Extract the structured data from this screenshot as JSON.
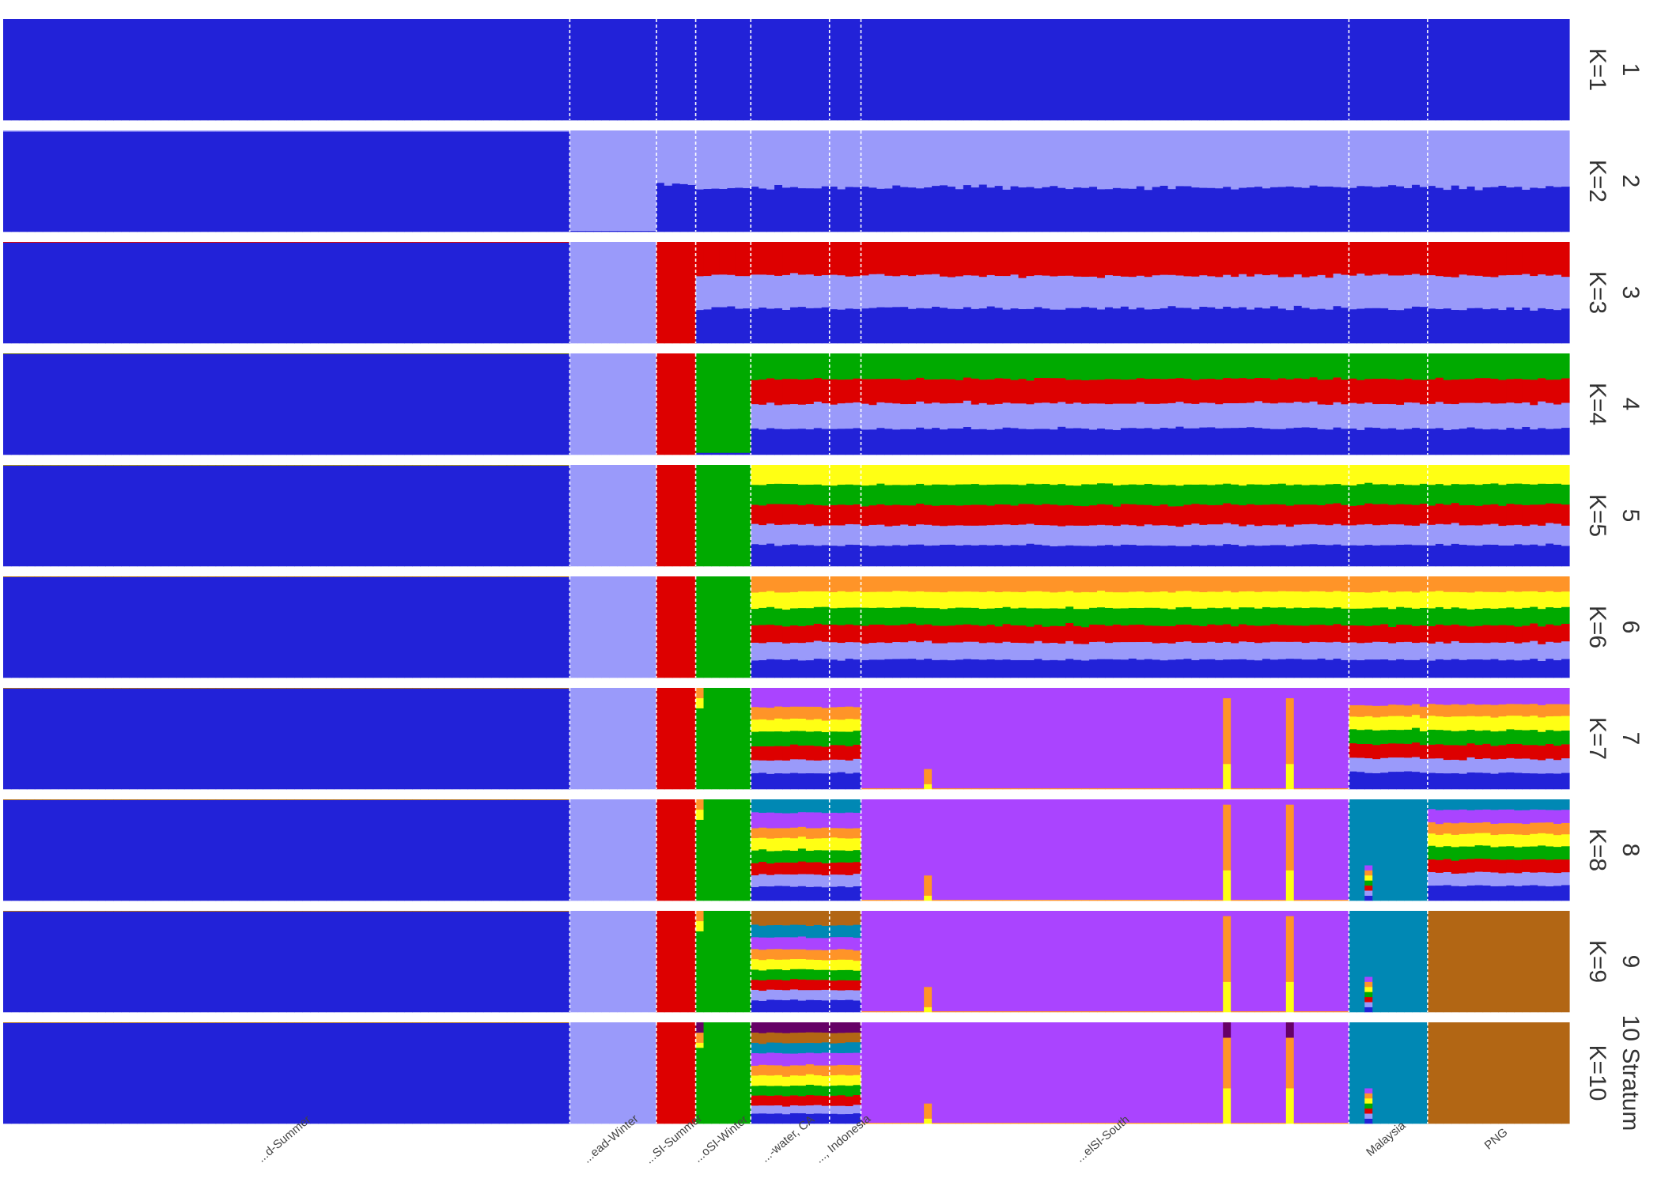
{
  "chart_data": {
    "type": "bar",
    "subtype": "stacked-admixture-facets",
    "title": "",
    "ylim": [
      0,
      1
    ],
    "grid": false,
    "colors": [
      "#2222d8",
      "#9a9afa",
      "#dd0000",
      "#00aa00",
      "#ffff14",
      "#ff9428",
      "#aa44ff",
      "#0088b4",
      "#b26614",
      "#660066"
    ],
    "groups": [
      {
        "label": "...d-Summer",
        "n": 72
      },
      {
        "label": "...ead-Winter",
        "n": 11
      },
      {
        "label": "...SI-Summer",
        "n": 5
      },
      {
        "label": "...oSI-Winter",
        "n": 7
      },
      {
        "label": "...-water, CA",
        "n": 10
      },
      {
        "label": "..., Indonesia",
        "n": 4
      },
      {
        "label": "...elSI-South",
        "n": 62
      },
      {
        "label": "Malaysia",
        "n": 10
      },
      {
        "label": "PNG",
        "n": 18
      }
    ],
    "panels": [
      {
        "k": "1",
        "label": "K=1",
        "profiles": [
          [
            1
          ],
          [
            1
          ],
          [
            1
          ],
          [
            1
          ],
          [
            1
          ],
          [
            1
          ],
          [
            1
          ],
          [
            1
          ],
          [
            1
          ]
        ],
        "outliers": []
      },
      {
        "k": "2",
        "label": "K=2",
        "profiles": [
          [
            0.99,
            0.01
          ],
          [
            0.01,
            0.99
          ],
          [
            0.48,
            0.52
          ],
          [
            0.43,
            0.57
          ],
          [
            0.44,
            0.56
          ],
          [
            0.44,
            0.56
          ],
          [
            0.44,
            0.56
          ],
          [
            0.45,
            0.55
          ],
          [
            0.44,
            0.56
          ]
        ],
        "outliers": []
      },
      {
        "k": "3",
        "label": "K=3",
        "profiles": [
          [
            0.995,
            0.0,
            0.005
          ],
          [
            0.0,
            1.0,
            0.0
          ],
          [
            0.0,
            0.0,
            1.0
          ],
          [
            0.35,
            0.32,
            0.33
          ],
          [
            0.35,
            0.33,
            0.32
          ],
          [
            0.34,
            0.33,
            0.33
          ],
          [
            0.35,
            0.32,
            0.33
          ],
          [
            0.35,
            0.33,
            0.32
          ],
          [
            0.34,
            0.33,
            0.33
          ]
        ],
        "outliers": []
      },
      {
        "k": "4",
        "label": "K=4",
        "profiles": [
          [
            0.995,
            0.0,
            0.003,
            0.002
          ],
          [
            0.0,
            1.0,
            0.0,
            0.0
          ],
          [
            0.0,
            0.0,
            1.0,
            0.0
          ],
          [
            0.02,
            0.0,
            0.0,
            0.98
          ],
          [
            0.26,
            0.25,
            0.24,
            0.25
          ],
          [
            0.26,
            0.25,
            0.24,
            0.25
          ],
          [
            0.26,
            0.25,
            0.24,
            0.25
          ],
          [
            0.26,
            0.25,
            0.24,
            0.25
          ],
          [
            0.26,
            0.25,
            0.24,
            0.25
          ]
        ],
        "outliers": []
      },
      {
        "k": "5",
        "label": "K=5",
        "profiles": [
          [
            0.995,
            0.0,
            0.002,
            0.002,
            0.001
          ],
          [
            0.0,
            1.0,
            0.0,
            0.0,
            0.0
          ],
          [
            0.0,
            0.0,
            1.0,
            0.0,
            0.0
          ],
          [
            0.0,
            0.0,
            0.0,
            1.0,
            0.0
          ],
          [
            0.21,
            0.2,
            0.2,
            0.2,
            0.19
          ],
          [
            0.21,
            0.2,
            0.2,
            0.2,
            0.19
          ],
          [
            0.21,
            0.2,
            0.2,
            0.2,
            0.19
          ],
          [
            0.21,
            0.2,
            0.2,
            0.2,
            0.19
          ],
          [
            0.21,
            0.2,
            0.2,
            0.2,
            0.19
          ]
        ],
        "outliers": []
      },
      {
        "k": "6",
        "label": "K=6",
        "profiles": [
          [
            0.995,
            0.0,
            0.002,
            0.002,
            0.0,
            0.001
          ],
          [
            0.0,
            1.0,
            0.0,
            0.0,
            0.0,
            0.0
          ],
          [
            0.0,
            0.0,
            1.0,
            0.0,
            0.0,
            0.0
          ],
          [
            0.0,
            0.0,
            0.0,
            1.0,
            0.0,
            0.0
          ],
          [
            0.18,
            0.17,
            0.17,
            0.17,
            0.16,
            0.15
          ],
          [
            0.18,
            0.17,
            0.17,
            0.17,
            0.16,
            0.15
          ],
          [
            0.18,
            0.17,
            0.17,
            0.17,
            0.16,
            0.15
          ],
          [
            0.18,
            0.17,
            0.17,
            0.17,
            0.16,
            0.15
          ],
          [
            0.18,
            0.17,
            0.17,
            0.17,
            0.16,
            0.15
          ]
        ],
        "outliers": []
      },
      {
        "k": "7",
        "label": "K=7",
        "profiles": [
          [
            0.995,
            0.0,
            0.002,
            0.002,
            0.0,
            0.001,
            0.0
          ],
          [
            0.0,
            1.0,
            0.0,
            0.0,
            0.0,
            0.0,
            0.0
          ],
          [
            0.0,
            0.0,
            1.0,
            0.0,
            0.0,
            0.0,
            0.0
          ],
          [
            0.0,
            0.0,
            0.0,
            1.0,
            0.0,
            0.0,
            0.0
          ],
          [
            0.16,
            0.13,
            0.14,
            0.14,
            0.12,
            0.12,
            0.19
          ],
          [
            0.16,
            0.13,
            0.14,
            0.14,
            0.12,
            0.12,
            0.19
          ],
          [
            0.0,
            0.0,
            0.0,
            0.0,
            0.0,
            0.01,
            0.99
          ],
          [
            0.17,
            0.14,
            0.14,
            0.14,
            0.13,
            0.11,
            0.17
          ],
          [
            0.16,
            0.14,
            0.14,
            0.14,
            0.14,
            0.12,
            0.16
          ]
        ],
        "outliers": [
          {
            "group": 3,
            "index": 0,
            "q": [
              0.0,
              0.0,
              0.0,
              0.8,
              0.1,
              0.1,
              0.0
            ]
          },
          {
            "group": 6,
            "index": 8,
            "q": [
              0.0,
              0.0,
              0.0,
              0.0,
              0.05,
              0.15,
              0.8
            ]
          },
          {
            "group": 6,
            "index": 46,
            "q": [
              0.0,
              0.0,
              0.0,
              0.0,
              0.25,
              0.65,
              0.1
            ]
          },
          {
            "group": 6,
            "index": 54,
            "q": [
              0.0,
              0.0,
              0.0,
              0.0,
              0.25,
              0.65,
              0.1
            ]
          }
        ]
      },
      {
        "k": "8",
        "label": "K=8",
        "profiles": [
          [
            0.995,
            0.0,
            0.002,
            0.002,
            0.0,
            0.001,
            0.0,
            0.0
          ],
          [
            0.0,
            1.0,
            0.0,
            0.0,
            0.0,
            0.0,
            0.0,
            0.0
          ],
          [
            0.0,
            0.0,
            1.0,
            0.0,
            0.0,
            0.0,
            0.0,
            0.0
          ],
          [
            0.0,
            0.0,
            0.0,
            1.0,
            0.0,
            0.0,
            0.0,
            0.0
          ],
          [
            0.14,
            0.12,
            0.12,
            0.12,
            0.12,
            0.1,
            0.15,
            0.13
          ],
          [
            0.14,
            0.12,
            0.12,
            0.12,
            0.12,
            0.1,
            0.15,
            0.13
          ],
          [
            0.0,
            0.0,
            0.0,
            0.0,
            0.0,
            0.01,
            0.99,
            0.0
          ],
          [
            0.0,
            0.0,
            0.0,
            0.0,
            0.0,
            0.0,
            0.0,
            1.0
          ],
          [
            0.15,
            0.13,
            0.13,
            0.13,
            0.12,
            0.11,
            0.13,
            0.1
          ]
        ],
        "outliers": [
          {
            "group": 3,
            "index": 0,
            "q": [
              0.0,
              0.0,
              0.0,
              0.8,
              0.1,
              0.1,
              0.0,
              0.0
            ]
          },
          {
            "group": 6,
            "index": 8,
            "q": [
              0.0,
              0.0,
              0.0,
              0.0,
              0.05,
              0.2,
              0.75,
              0.0
            ]
          },
          {
            "group": 6,
            "index": 46,
            "q": [
              0.0,
              0.0,
              0.0,
              0.0,
              0.3,
              0.65,
              0.05,
              0.0
            ]
          },
          {
            "group": 6,
            "index": 54,
            "q": [
              0.0,
              0.0,
              0.0,
              0.0,
              0.3,
              0.65,
              0.05,
              0.0
            ]
          },
          {
            "group": 7,
            "index": 2,
            "q": [
              0.05,
              0.05,
              0.05,
              0.05,
              0.05,
              0.05,
              0.05,
              0.65
            ]
          }
        ]
      },
      {
        "k": "9",
        "label": "K=9",
        "profiles": [
          [
            0.995,
            0.0,
            0.002,
            0.002,
            0.0,
            0.001,
            0.0,
            0.0,
            0.0
          ],
          [
            0.0,
            1.0,
            0.0,
            0.0,
            0.0,
            0.0,
            0.0,
            0.0,
            0.0
          ],
          [
            0.0,
            0.0,
            1.0,
            0.0,
            0.0,
            0.0,
            0.0,
            0.0,
            0.0
          ],
          [
            0.0,
            0.0,
            0.0,
            1.0,
            0.0,
            0.0,
            0.0,
            0.0,
            0.0
          ],
          [
            0.12,
            0.1,
            0.1,
            0.1,
            0.1,
            0.1,
            0.12,
            0.12,
            0.14
          ],
          [
            0.12,
            0.1,
            0.1,
            0.1,
            0.1,
            0.1,
            0.12,
            0.12,
            0.14
          ],
          [
            0.0,
            0.0,
            0.0,
            0.0,
            0.0,
            0.01,
            0.99,
            0.0,
            0.0
          ],
          [
            0.0,
            0.0,
            0.0,
            0.0,
            0.0,
            0.0,
            0.0,
            1.0,
            0.0
          ],
          [
            0.0,
            0.0,
            0.0,
            0.0,
            0.0,
            0.0,
            0.0,
            0.0,
            1.0
          ]
        ],
        "outliers": [
          {
            "group": 3,
            "index": 0,
            "q": [
              0.0,
              0.0,
              0.0,
              0.8,
              0.1,
              0.1,
              0.0,
              0.0,
              0.0
            ]
          },
          {
            "group": 6,
            "index": 8,
            "q": [
              0.0,
              0.0,
              0.0,
              0.0,
              0.05,
              0.2,
              0.75,
              0.0,
              0.0
            ]
          },
          {
            "group": 6,
            "index": 46,
            "q": [
              0.0,
              0.0,
              0.0,
              0.0,
              0.3,
              0.65,
              0.05,
              0.0,
              0.0
            ]
          },
          {
            "group": 6,
            "index": 54,
            "q": [
              0.0,
              0.0,
              0.0,
              0.0,
              0.3,
              0.65,
              0.05,
              0.0,
              0.0
            ]
          },
          {
            "group": 7,
            "index": 2,
            "q": [
              0.05,
              0.05,
              0.05,
              0.05,
              0.05,
              0.05,
              0.05,
              0.65,
              0.0
            ]
          }
        ]
      },
      {
        "k": "10 Stratum",
        "label": "K=10",
        "profiles": [
          [
            0.995,
            0.0,
            0.002,
            0.002,
            0.0,
            0.001,
            0.0,
            0.0,
            0.0,
            0.0
          ],
          [
            0.0,
            1.0,
            0.0,
            0.0,
            0.0,
            0.0,
            0.0,
            0.0,
            0.0,
            0.0
          ],
          [
            0.0,
            0.0,
            1.0,
            0.0,
            0.0,
            0.0,
            0.0,
            0.0,
            0.0,
            0.0
          ],
          [
            0.0,
            0.0,
            0.0,
            1.0,
            0.0,
            0.0,
            0.0,
            0.0,
            0.0,
            0.0
          ],
          [
            0.1,
            0.08,
            0.1,
            0.1,
            0.1,
            0.1,
            0.12,
            0.1,
            0.1,
            0.1
          ],
          [
            0.1,
            0.08,
            0.1,
            0.1,
            0.1,
            0.1,
            0.12,
            0.1,
            0.1,
            0.1
          ],
          [
            0.0,
            0.0,
            0.0,
            0.0,
            0.0,
            0.01,
            0.99,
            0.0,
            0.0,
            0.0
          ],
          [
            0.0,
            0.0,
            0.0,
            0.0,
            0.0,
            0.0,
            0.0,
            1.0,
            0.0,
            0.0
          ],
          [
            0.0,
            0.0,
            0.0,
            0.0,
            0.0,
            0.0,
            0.0,
            0.0,
            1.0,
            0.0
          ]
        ],
        "outliers": [
          {
            "group": 3,
            "index": 0,
            "q": [
              0.0,
              0.0,
              0.0,
              0.75,
              0.05,
              0.1,
              0.0,
              0.0,
              0.0,
              0.1
            ]
          },
          {
            "group": 6,
            "index": 8,
            "q": [
              0.0,
              0.0,
              0.0,
              0.0,
              0.05,
              0.15,
              0.8,
              0.0,
              0.0,
              0.0
            ]
          },
          {
            "group": 6,
            "index": 46,
            "q": [
              0.0,
              0.0,
              0.0,
              0.0,
              0.35,
              0.5,
              0.0,
              0.0,
              0.0,
              0.15
            ]
          },
          {
            "group": 6,
            "index": 54,
            "q": [
              0.0,
              0.0,
              0.0,
              0.0,
              0.35,
              0.5,
              0.0,
              0.0,
              0.0,
              0.15
            ]
          },
          {
            "group": 7,
            "index": 2,
            "q": [
              0.05,
              0.05,
              0.05,
              0.05,
              0.05,
              0.05,
              0.05,
              0.65,
              0.0,
              0.0
            ]
          }
        ]
      }
    ]
  }
}
